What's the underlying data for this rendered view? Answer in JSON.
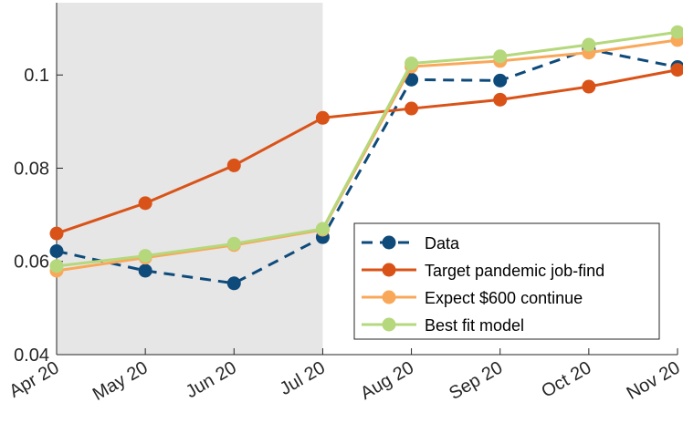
{
  "chart_data": {
    "type": "line",
    "categories": [
      "Apr 20",
      "May 20",
      "Jun 20",
      "Jul 20",
      "Aug 20",
      "Sep 20",
      "Oct 20",
      "Nov 20"
    ],
    "ylim": [
      0.04,
      0.1155
    ],
    "yticks": [
      0.04,
      0.06,
      0.08,
      0.1
    ],
    "ytick_labels": [
      "0.04",
      "0.06",
      "0.08",
      "0.1"
    ],
    "shaded_region": {
      "from": "Apr 20",
      "to": "Jul 20",
      "color": "#e6e6e6"
    },
    "grid": false,
    "legend_position": "lower-right",
    "series": [
      {
        "name": "Data",
        "color": "#0e4a7a",
        "dash": true,
        "values": [
          0.0622,
          0.058,
          0.0553,
          0.0652,
          0.099,
          0.0988,
          0.1055,
          0.1017
        ]
      },
      {
        "name": "Target pandemic job-find",
        "color": "#d95319",
        "dash": false,
        "values": [
          0.066,
          0.0725,
          0.0806,
          0.0908,
          0.0928,
          0.0947,
          0.0975,
          0.1011
        ]
      },
      {
        "name": "Expect $600 continue",
        "color": "#f9a85a",
        "dash": false,
        "values": [
          0.058,
          0.0608,
          0.0635,
          0.0668,
          0.1018,
          0.103,
          0.1048,
          0.1075
        ]
      },
      {
        "name": "Best fit model",
        "color": "#b5d87c",
        "dash": false,
        "values": [
          0.059,
          0.0612,
          0.0638,
          0.067,
          0.1025,
          0.104,
          0.1065,
          0.1092
        ]
      }
    ]
  }
}
